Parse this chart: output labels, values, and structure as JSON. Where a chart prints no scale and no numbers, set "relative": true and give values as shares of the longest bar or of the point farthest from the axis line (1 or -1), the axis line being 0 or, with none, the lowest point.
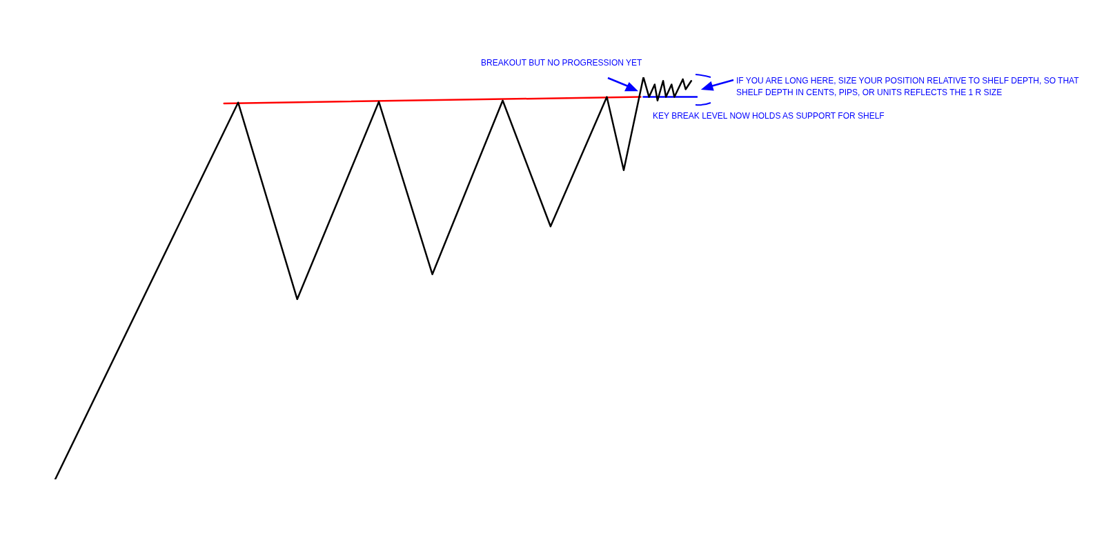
{
  "chart_data": {
    "type": "line",
    "relative": true,
    "legend": false,
    "marker": "none",
    "line_style": "solid",
    "categories": [
      null,
      null,
      null,
      null,
      null,
      null,
      null,
      null,
      null,
      null,
      null,
      null,
      null,
      null,
      null,
      null,
      null,
      null,
      null,
      null,
      null,
      null,
      null,
      null,
      null,
      null,
      null,
      null,
      null,
      null,
      null,
      null,
      null,
      null,
      null,
      null,
      null,
      null,
      null,
      null,
      null,
      null,
      null,
      null,
      null,
      null,
      null,
      null,
      null,
      null,
      null,
      null,
      null,
      null,
      null,
      null,
      null,
      null,
      null,
      null,
      null,
      null,
      null,
      null,
      null,
      null,
      null,
      null,
      null,
      null,
      null,
      null,
      null,
      null,
      null,
      null,
      null,
      null,
      null,
      null,
      null,
      null,
      null,
      null,
      null,
      null,
      null,
      null,
      null,
      null,
      null,
      null,
      null,
      null,
      null,
      null,
      null,
      null,
      null,
      null,
      null,
      null,
      null,
      null,
      null,
      null,
      null,
      null,
      null,
      null,
      null,
      null,
      null,
      null,
      null,
      null,
      null,
      null,
      null,
      null,
      null,
      null,
      null,
      null,
      null,
      null,
      null,
      null,
      null,
      null,
      null,
      null,
      null,
      null,
      null,
      null,
      null,
      null,
      null,
      null,
      null,
      null,
      null,
      null,
      null,
      null,
      null,
      null,
      null,
      null,
      null,
      null,
      null,
      null,
      null,
      null,
      null,
      null,
      null,
      null,
      null,
      null,
      null,
      null,
      null,
      null,
      null,
      null,
      null,
      null,
      null,
      null,
      null,
      null,
      null,
      null,
      null,
      null,
      null,
      null,
      null,
      null,
      null,
      null,
      null,
      null,
      null,
      null,
      null,
      null,
      null,
      null,
      null,
      null,
      null,
      null,
      null,
      null,
      null,
      null,
      null,
      null,
      null,
      null,
      null,
      null,
      null,
      null,
      null,
      null,
      null,
      null,
      null,
      null,
      null,
      null,
      null,
      null,
      null,
      null,
      null,
      null,
      null,
      null,
      null,
      null,
      null,
      null,
      null
    ],
    "series": [
      {
        "color": "#000000",
        "values": [
          0,
          null,
          null,
          null,
          null,
          null,
          null,
          null,
          null,
          null,
          null,
          null,
          null,
          null,
          null,
          null,
          null,
          null,
          null,
          null,
          null,
          null,
          null,
          null,
          null,
          null,
          null,
          null,
          null,
          null,
          null,
          null,
          null,
          null,
          null,
          null,
          null,
          null,
          null,
          null,
          null,
          null,
          null,
          null,
          null,
          null,
          null,
          null,
          null,
          null,
          null,
          null,
          null,
          null,
          null,
          null,
          null,
          null,
          null,
          null,
          null,
          null,
          null,
          null,
          null,
          0.937,
          null,
          null,
          null,
          null,
          null,
          null,
          null,
          null,
          null,
          null,
          null,
          null,
          null,
          null,
          null,
          null,
          null,
          null,
          null,
          null,
          0.448,
          null,
          null,
          null,
          null,
          null,
          null,
          null,
          null,
          null,
          null,
          null,
          null,
          null,
          null,
          null,
          null,
          null,
          null,
          null,
          null,
          null,
          null,
          null,
          null,
          null,
          null,
          null,
          null,
          0.939,
          null,
          null,
          null,
          null,
          null,
          null,
          null,
          null,
          null,
          null,
          null,
          null,
          null,
          null,
          null,
          null,
          null,
          null,
          0.51,
          null,
          null,
          null,
          null,
          null,
          null,
          null,
          null,
          null,
          null,
          null,
          null,
          null,
          null,
          null,
          null,
          null,
          null,
          null,
          null,
          null,
          null,
          null,
          null,
          0.942,
          null,
          null,
          null,
          null,
          null,
          null,
          null,
          null,
          null,
          null,
          null,
          null,
          null,
          null,
          null,
          null,
          0.629,
          null,
          null,
          null,
          null,
          null,
          null,
          null,
          null,
          null,
          null,
          null,
          null,
          null,
          null,
          null,
          null,
          null,
          null,
          null,
          0.951,
          null,
          null,
          null,
          null,
          null,
          0.769,
          null,
          null,
          null,
          null,
          null,
          null,
          1,
          null,
          0.951,
          null,
          0.982,
          0.942,
          null,
          0.991,
          0.951,
          null,
          0.982,
          0.951,
          null,
          null,
          0.995,
          0.97,
          null,
          0.991,
          null,
          null
        ]
      },
      {
        "color": "#ff0000",
        "values": [
          null,
          null,
          null,
          null,
          null,
          null,
          null,
          null,
          null,
          null,
          null,
          null,
          null,
          null,
          null,
          null,
          null,
          null,
          null,
          null,
          null,
          null,
          null,
          null,
          null,
          null,
          null,
          null,
          null,
          null,
          null,
          null,
          null,
          null,
          null,
          null,
          null,
          null,
          null,
          null,
          null,
          null,
          null,
          null,
          null,
          null,
          null,
          null,
          null,
          null,
          null,
          null,
          null,
          null,
          null,
          null,
          null,
          null,
          null,
          null,
          0.935,
          null,
          null,
          null,
          null,
          null,
          null,
          null,
          null,
          null,
          null,
          null,
          null,
          null,
          null,
          null,
          null,
          null,
          null,
          null,
          null,
          null,
          null,
          null,
          null,
          null,
          null,
          null,
          null,
          null,
          null,
          null,
          null,
          null,
          null,
          null,
          null,
          null,
          null,
          null,
          null,
          null,
          null,
          null,
          null,
          null,
          null,
          null,
          null,
          null,
          null,
          null,
          null,
          null,
          null,
          null,
          null,
          null,
          null,
          null,
          null,
          null,
          null,
          null,
          null,
          null,
          null,
          null,
          null,
          null,
          null,
          null,
          null,
          null,
          null,
          null,
          null,
          null,
          null,
          null,
          null,
          null,
          null,
          null,
          null,
          null,
          null,
          null,
          null,
          null,
          null,
          null,
          null,
          null,
          null,
          null,
          null,
          null,
          null,
          null,
          null,
          null,
          null,
          null,
          null,
          null,
          null,
          null,
          null,
          null,
          null,
          null,
          null,
          null,
          null,
          null,
          null,
          null,
          null,
          null,
          null,
          null,
          null,
          null,
          null,
          null,
          null,
          null,
          null,
          null,
          null,
          null,
          null,
          null,
          null,
          null,
          null,
          null,
          null,
          null,
          null,
          null,
          null,
          null,
          null,
          null,
          null,
          null,
          0.951,
          null,
          null,
          null,
          null,
          null,
          null,
          null,
          null,
          null,
          null,
          null,
          null,
          null,
          null,
          null,
          null,
          null,
          null,
          null,
          null
        ]
      },
      {
        "color": "#0000ff",
        "values": [
          null,
          null,
          null,
          null,
          null,
          null,
          null,
          null,
          null,
          null,
          null,
          null,
          null,
          null,
          null,
          null,
          null,
          null,
          null,
          null,
          null,
          null,
          null,
          null,
          null,
          null,
          null,
          null,
          null,
          null,
          null,
          null,
          null,
          null,
          null,
          null,
          null,
          null,
          null,
          null,
          null,
          null,
          null,
          null,
          null,
          null,
          null,
          null,
          null,
          null,
          null,
          null,
          null,
          null,
          null,
          null,
          null,
          null,
          null,
          null,
          null,
          null,
          null,
          null,
          null,
          null,
          null,
          null,
          null,
          null,
          null,
          null,
          null,
          null,
          null,
          null,
          null,
          null,
          null,
          null,
          null,
          null,
          null,
          null,
          null,
          null,
          null,
          null,
          null,
          null,
          null,
          null,
          null,
          null,
          null,
          null,
          null,
          null,
          null,
          null,
          null,
          null,
          null,
          null,
          null,
          null,
          null,
          null,
          null,
          null,
          null,
          null,
          null,
          null,
          null,
          null,
          null,
          null,
          null,
          null,
          null,
          null,
          null,
          null,
          null,
          null,
          null,
          null,
          null,
          null,
          null,
          null,
          null,
          null,
          null,
          null,
          null,
          null,
          null,
          null,
          null,
          null,
          null,
          null,
          null,
          null,
          null,
          null,
          null,
          null,
          null,
          null,
          null,
          null,
          null,
          null,
          null,
          null,
          null,
          null,
          null,
          null,
          null,
          null,
          null,
          null,
          null,
          null,
          null,
          null,
          null,
          null,
          null,
          null,
          null,
          null,
          null,
          null,
          null,
          null,
          null,
          null,
          null,
          null,
          null,
          null,
          null,
          null,
          null,
          null,
          null,
          null,
          null,
          null,
          null,
          null,
          null,
          null,
          null,
          null,
          null,
          null,
          null,
          null,
          null,
          null,
          null,
          null,
          null,
          0.951,
          null,
          null,
          null,
          null,
          null,
          null,
          null,
          null,
          null,
          null,
          null,
          null,
          null,
          null,
          null,
          null,
          null,
          null,
          0.951
        ]
      }
    ],
    "annotations": [
      "BREAKOUT BUT NO PROGRESSION YET",
      "IF YOU ARE LONG HERE, SIZE YOUR POSITION RELATIVE TO SHELF DEPTH, SO THAT SHELF DEPTH IN CENTS, PIPS, OR UNITS REFLECTS THE 1 R SIZE",
      "KEY BREAK LEVEL NOW HOLDS AS SUPPORT FOR SHELF"
    ]
  }
}
